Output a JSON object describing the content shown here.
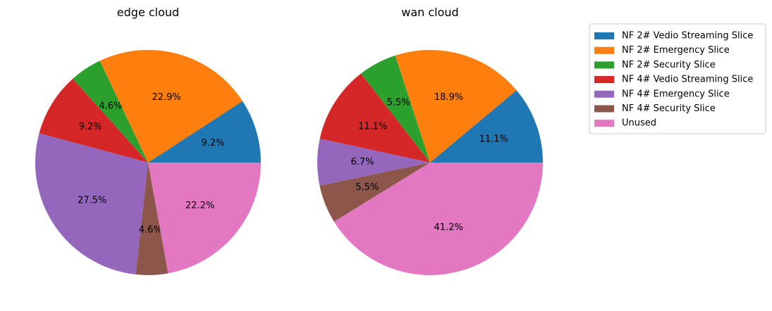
{
  "chart_data": [
    {
      "type": "pie",
      "title": "edge cloud",
      "slices": [
        {
          "label": "NF 2# Vedio Streaming Slice",
          "value": 9.2,
          "text": "9.2%"
        },
        {
          "label": "NF 2# Emergency Slice",
          "value": 22.9,
          "text": "22.9%"
        },
        {
          "label": "NF 2# Security Slice",
          "value": 4.6,
          "text": "4.6%"
        },
        {
          "label": "NF 4# Vedio Streaming Slice",
          "value": 9.2,
          "text": "9.2%"
        },
        {
          "label": "NF 4# Emergency Slice",
          "value": 27.5,
          "text": "27.5%"
        },
        {
          "label": "NF 4# Security Slice",
          "value": 4.6,
          "text": "4.6%"
        },
        {
          "label": "Unused",
          "value": 22.2,
          "text": "22.2%"
        }
      ]
    },
    {
      "type": "pie",
      "title": "wan cloud",
      "slices": [
        {
          "label": "NF 2# Vedio Streaming Slice",
          "value": 11.1,
          "text": "11.1%"
        },
        {
          "label": "NF 2# Emergency Slice",
          "value": 18.9,
          "text": "18.9%"
        },
        {
          "label": "NF 2# Security Slice",
          "value": 5.5,
          "text": "5.5%"
        },
        {
          "label": "NF 4# Vedio Streaming Slice",
          "value": 11.1,
          "text": "11.1%"
        },
        {
          "label": "NF 4# Emergency Slice",
          "value": 6.7,
          "text": "6.7%"
        },
        {
          "label": "NF 4# Security Slice",
          "value": 5.5,
          "text": "5.5%"
        },
        {
          "label": "Unused",
          "value": 41.2,
          "text": "41.2%"
        }
      ]
    }
  ],
  "legend": {
    "placement": "right",
    "entries": [
      {
        "label": "NF 2# Vedio Streaming Slice",
        "color": "#1f77b4"
      },
      {
        "label": "NF 2# Emergency Slice",
        "color": "#ff7f0e"
      },
      {
        "label": "NF 2# Security Slice",
        "color": "#2ca02c"
      },
      {
        "label": "NF 4# Vedio Streaming Slice",
        "color": "#d62728"
      },
      {
        "label": "NF 4# Emergency Slice",
        "color": "#9467bd"
      },
      {
        "label": "NF 4# Security Slice",
        "color": "#8c564b"
      },
      {
        "label": "Unused",
        "color": "#e377c2"
      }
    ]
  }
}
